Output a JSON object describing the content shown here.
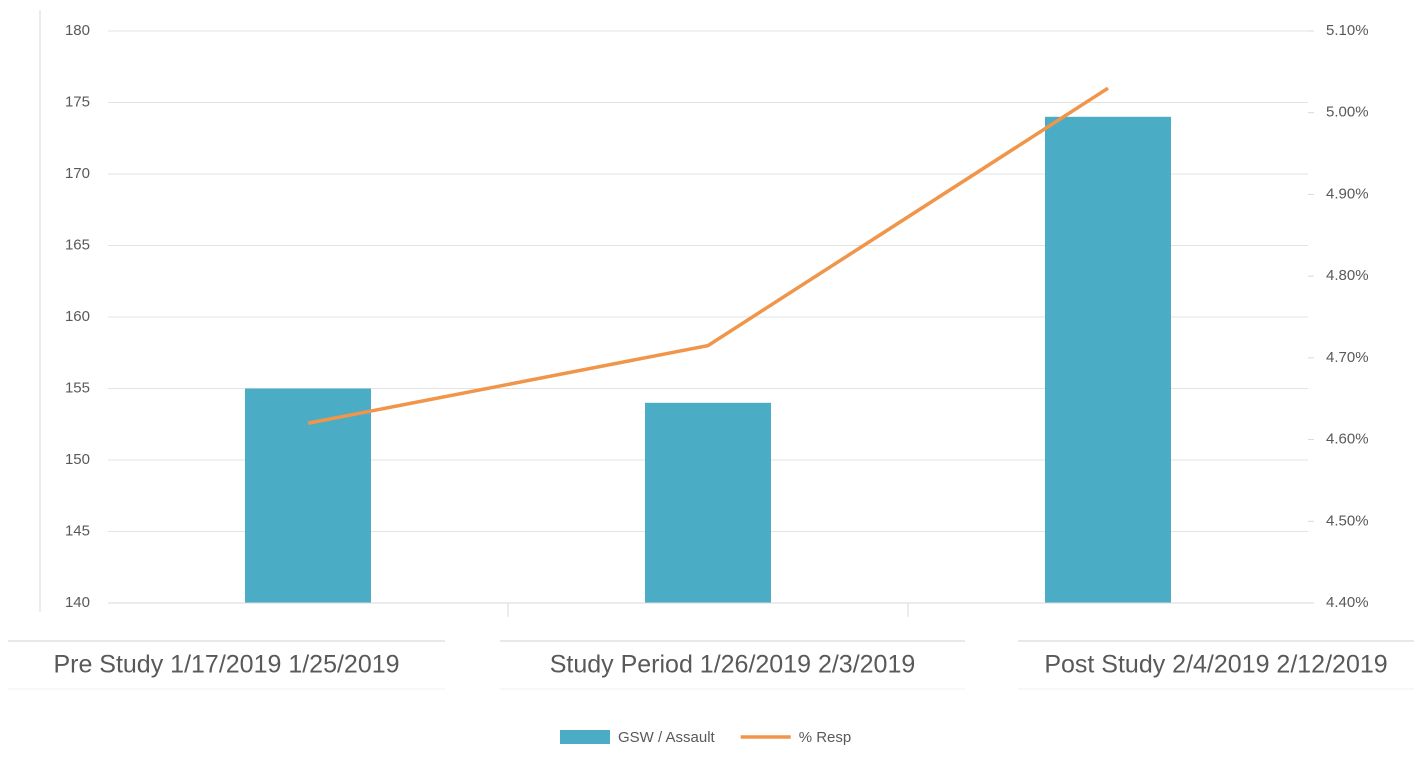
{
  "chart_data": {
    "type": "bar+line",
    "categories": [
      "Pre Study 1/17/2019 1/25/2019",
      "Study Period 1/26/2019 2/3/2019",
      "Post Study 2/4/2019 2/12/2019"
    ],
    "series": [
      {
        "name": "GSW / Assault",
        "color": "#4bacc6",
        "type": "bar",
        "values": [
          155,
          154,
          174
        ]
      },
      {
        "name": "% Resp",
        "color": "#f0954a",
        "type": "line",
        "axis": "y2",
        "values": [
          4.62,
          4.715,
          5.03
        ]
      }
    ],
    "ylim": [
      140,
      180
    ],
    "yticks": [
      140,
      145,
      150,
      155,
      160,
      165,
      170,
      175,
      180
    ],
    "y2lim": [
      4.4,
      5.1
    ],
    "y2ticks": [
      {
        "value": 4.4,
        "label": "4.40%"
      },
      {
        "value": 4.5,
        "label": "4.50%"
      },
      {
        "value": 4.6,
        "label": "4.60%"
      },
      {
        "value": 4.7,
        "label": "4.70%"
      },
      {
        "value": 4.8,
        "label": "4.80%"
      },
      {
        "value": 4.9,
        "label": "4.90%"
      },
      {
        "value": 5.0,
        "label": "5.00%"
      },
      {
        "value": 5.1,
        "label": "5.10%"
      }
    ],
    "grid": true,
    "legend": "bottom"
  }
}
